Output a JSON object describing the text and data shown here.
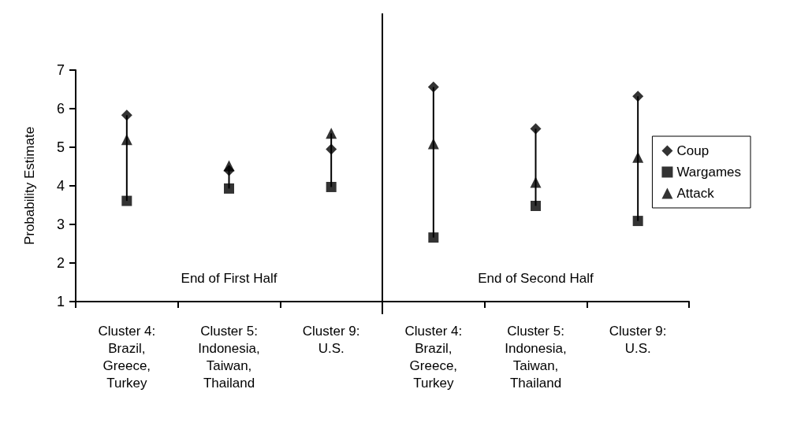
{
  "chart_data": {
    "type": "scatter",
    "ylabel": "Probability Estimate",
    "categories": [
      "Cluster 4:\nBrazil,\nGreece,\nTurkey",
      "Cluster 5:\nIndonesia,\nTaiwan,\nThailand",
      "Cluster 9:\nU.S.",
      "Cluster 4:\nBrazil,\nGreece,\nTurkey",
      "Cluster 5:\nIndonesia,\nTaiwan,\nThailand",
      "Cluster 9:\nU.S."
    ],
    "series": [
      {
        "name": "Coup",
        "color": "#000000",
        "marker": "diamond",
        "values": [
          5.83,
          4.4,
          4.95,
          6.56,
          5.48,
          6.32
        ]
      },
      {
        "name": "Wargames",
        "color": "#000000",
        "marker": "square",
        "values": [
          3.61,
          3.93,
          3.97,
          2.66,
          3.48,
          3.09
        ]
      },
      {
        "name": "Attack",
        "color": "#000000",
        "marker": "triangle",
        "values": [
          5.2,
          4.52,
          5.36,
          5.09,
          4.09,
          4.74
        ]
      }
    ],
    "annotations": [
      "End of First Half",
      "End of Second Half"
    ],
    "ylim": [
      1,
      7
    ],
    "yticks": [
      1,
      2,
      3,
      4,
      5,
      6,
      7
    ],
    "grid": false,
    "legend": "right"
  }
}
